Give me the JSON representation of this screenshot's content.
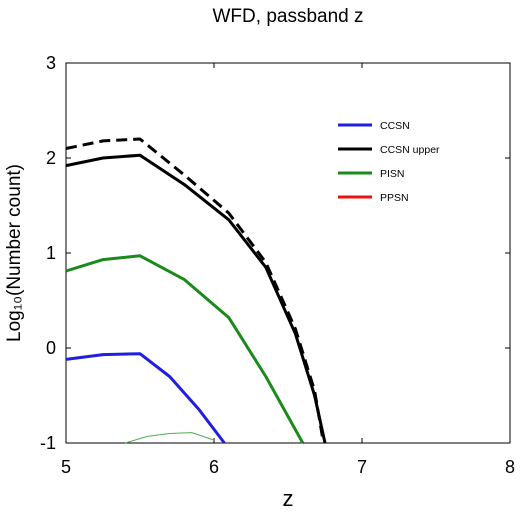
{
  "chart_data": {
    "type": "line",
    "title": "WFD, passband z",
    "xlabel": "z",
    "ylabel": "Log₁₀(Number count)",
    "xlim": [
      5,
      8
    ],
    "ylim": [
      -1,
      3
    ],
    "x_ticks": [
      "5",
      "6",
      "7",
      "8"
    ],
    "y_ticks": [
      "-1",
      "0",
      "1",
      "2",
      "3"
    ],
    "grid": false,
    "legend_position": "top-right",
    "series": [
      {
        "name": "CCSN",
        "color": "#1f1fe0",
        "style": "solid",
        "x": [
          5.0,
          5.25,
          5.5,
          5.7,
          5.9,
          6.07
        ],
        "y": [
          -0.12,
          -0.07,
          -0.06,
          -0.3,
          -0.65,
          -1.0
        ]
      },
      {
        "name": "CCSN upper",
        "color": "#000000",
        "style": "solid",
        "x": [
          5.0,
          5.25,
          5.5,
          5.8,
          6.1,
          6.35,
          6.55,
          6.68,
          6.75
        ],
        "y": [
          1.92,
          2.0,
          2.03,
          1.72,
          1.35,
          0.85,
          0.15,
          -0.5,
          -1.0
        ]
      },
      {
        "name": "",
        "color": "#000000",
        "style": "dashed",
        "x": [
          5.0,
          5.25,
          5.5,
          5.8,
          6.1,
          6.35,
          6.55,
          6.68,
          6.74
        ],
        "y": [
          2.1,
          2.18,
          2.2,
          1.82,
          1.42,
          0.9,
          0.2,
          -0.45,
          -1.0
        ]
      },
      {
        "name": "PISN",
        "color": "#1a8a1a",
        "style": "solid",
        "x": [
          5.0,
          5.25,
          5.5,
          5.8,
          6.1,
          6.35,
          6.6
        ],
        "y": [
          0.81,
          0.93,
          0.97,
          0.72,
          0.32,
          -0.3,
          -1.0
        ]
      },
      {
        "name": "",
        "color": "#4caf4c",
        "style": "thin",
        "x": [
          5.4,
          5.55,
          5.7,
          5.85,
          6.0
        ],
        "y": [
          -1.0,
          -0.93,
          -0.9,
          -0.89,
          -0.97
        ]
      },
      {
        "name": "PPSN",
        "color": "#ee1111",
        "style": "solid",
        "x": [],
        "y": []
      }
    ]
  }
}
